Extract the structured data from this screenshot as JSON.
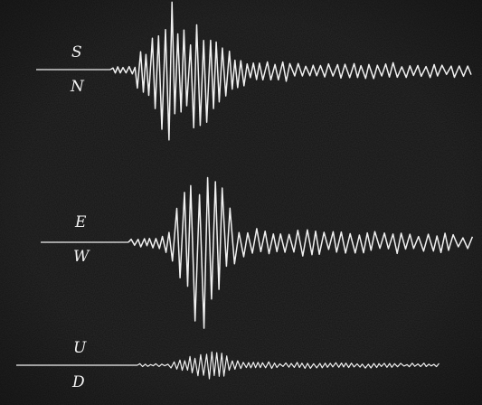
{
  "figure": {
    "background_color": "#141414",
    "trace_color": "#f0f0f0",
    "channels": [
      {
        "id": "ns",
        "upper_label": "S",
        "lower_label": "N"
      },
      {
        "id": "ew",
        "upper_label": "E",
        "lower_label": "W"
      },
      {
        "id": "ud",
        "upper_label": "U",
        "lower_label": "D"
      }
    ]
  }
}
